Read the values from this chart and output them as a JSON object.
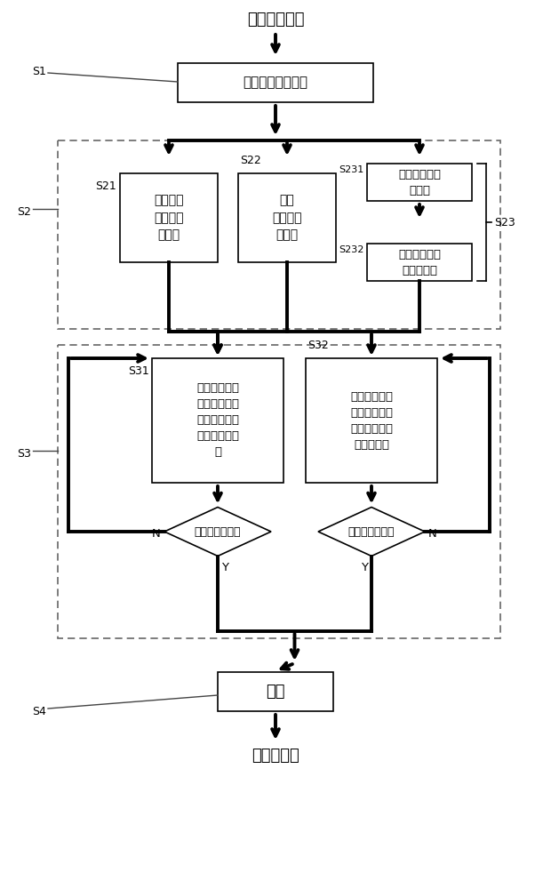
{
  "title_top": "半成品均热板",
  "title_bottom": "成品均热板",
  "s1_label": "S1",
  "s2_label": "S2",
  "s3_label": "S3",
  "s4_label": "S4",
  "box_inject": "注入液体相变工质",
  "box_s21": "大气常压\n环境下冷\n冻凝固",
  "box_s22": "真空\n环境下冷\n冻凝固",
  "box_s231": "大气常压环境\n下冷冻",
  "box_s232": "真空环境下最\n终冷冻凝固",
  "box_s31": "将半成品均热\n板的预留开口\n连接到真空管\n道进行真空抽\n气",
  "box_s32": "将半成品均热\n板置于真空腔\n室内，对真空\n腔室抽真空",
  "diamond_left": "达到终止气压值",
  "diamond_right": "达到终止气压值",
  "box_seal": "封口",
  "label_s21": "S21",
  "label_s22": "S22",
  "label_s231": "S231",
  "label_s232": "S232",
  "label_s23": "S23",
  "label_s31": "S31",
  "label_s32": "S32",
  "label_n_left": "N",
  "label_y_left": "Y",
  "label_n_right": "N",
  "label_y_right": "Y",
  "bg_color": "#ffffff",
  "box_color": "#ffffff",
  "box_edge": "#000000",
  "dash_border_color": "#666666",
  "text_color": "#000000",
  "bold_lw": 2.8,
  "thin_lw": 1.2,
  "font_size_title": 13,
  "font_size_box": 10,
  "font_size_small_box": 9.5,
  "font_size_label": 9,
  "font_size_seal": 13
}
